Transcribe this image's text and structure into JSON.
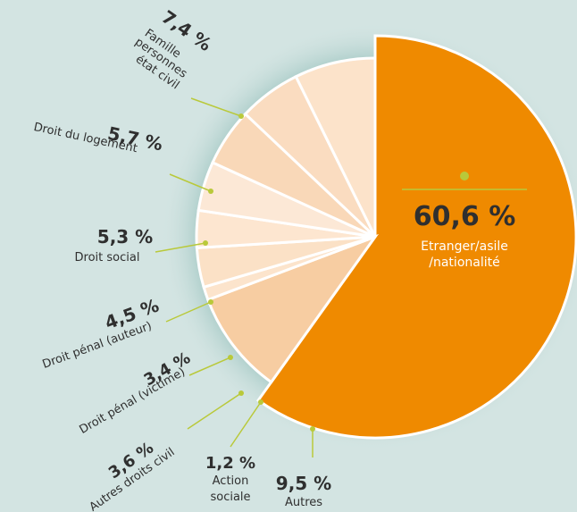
{
  "chart_data": {
    "type": "pie",
    "slices": [
      {
        "label": "Etranger/asile /nationalité",
        "value": 60.6,
        "value_label": "60,6 %",
        "color": "#ef8a00"
      },
      {
        "label": "Autres",
        "value": 9.5,
        "value_label": "9,5 %",
        "color": "#f7cda2"
      },
      {
        "label": "Action sociale",
        "value": 1.2,
        "value_label": "1,2 %",
        "color": "#fce4cc"
      },
      {
        "label": "Autres droits civil",
        "value": 3.6,
        "value_label": "3,6 %",
        "color": "#fbe1c6"
      },
      {
        "label": "Droit pénal (victime)",
        "value": 3.4,
        "value_label": "3,4 %",
        "color": "#fde6d0"
      },
      {
        "label": "Droit pénal (auteur)",
        "value": 4.5,
        "value_label": "4,5 %",
        "color": "#fce8d6"
      },
      {
        "label": "Droit social",
        "value": 5.3,
        "value_label": "5,3 %",
        "color": "#f9d8b8"
      },
      {
        "label": "Droit du logement",
        "value": 5.7,
        "value_label": "5,7 %",
        "color": "#fadcc0"
      },
      {
        "label": "Famille personnes état civil",
        "value": 7.4,
        "value_label": "7,4 %",
        "color": "#fce3ca"
      }
    ],
    "colors": {
      "background": "#d3e4e2",
      "halo": "#a8cbc7",
      "leader": "#b9c93a",
      "text": "#2f2f2f",
      "big_text": "#ffffff"
    }
  }
}
